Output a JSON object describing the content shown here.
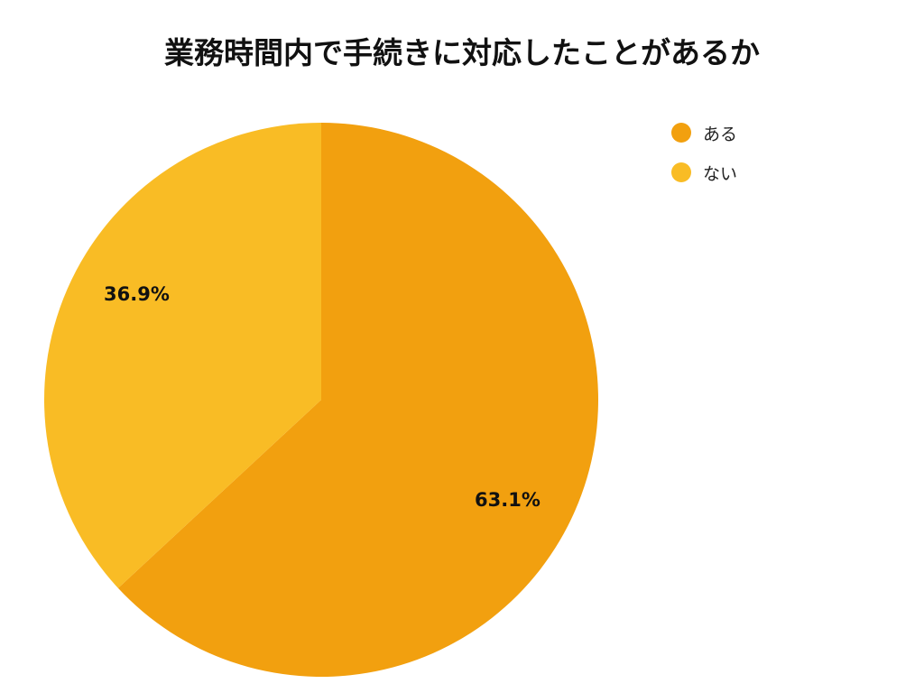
{
  "chart_data": {
    "type": "pie",
    "title": "業務時間内で手続きに対応したことがあるか",
    "categories": [
      "ある",
      "ない"
    ],
    "values": [
      63.1,
      36.9
    ],
    "unit": "%",
    "colors": [
      "#F2A00F",
      "#F9BC25"
    ],
    "data_labels": [
      "63.1%",
      "36.9%"
    ],
    "start_angle": "12 o'clock",
    "direction": "clockwise",
    "legend_position": "top-right"
  },
  "legend": {
    "items": [
      {
        "label": "ある",
        "color": "#F2A00F"
      },
      {
        "label": "ない",
        "color": "#F9BC25"
      }
    ]
  },
  "labels": {
    "aru": "63.1%",
    "nai": "36.9%"
  }
}
